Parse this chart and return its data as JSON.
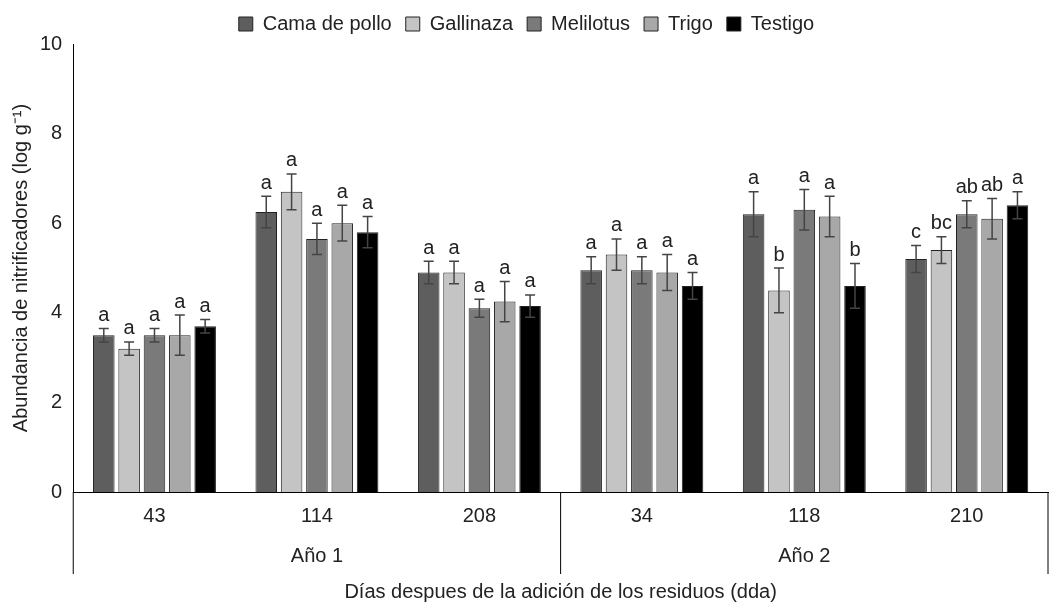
{
  "chart_data": {
    "type": "bar",
    "xlabel": "Días despues de la adición de los residuos (dda)",
    "ylabel": "Abundancia de nitrificadores (log g⁻¹)",
    "categories": [
      "43",
      "114",
      "208",
      "34",
      "118",
      "210"
    ],
    "annotations": [
      "Año 1",
      "Año 2"
    ],
    "ylim": [
      0,
      10
    ],
    "yticks": [
      0,
      2,
      4,
      6,
      8,
      10
    ],
    "grid": false,
    "legend": "top",
    "series": [
      {
        "name": "Cama de pollo",
        "color": "#5e5e5e",
        "values": [
          3.5,
          6.25,
          4.9,
          4.95,
          6.2,
          5.2
        ],
        "errors": [
          0.15,
          0.35,
          0.25,
          0.3,
          0.5,
          0.3
        ],
        "value_labels": [
          "a",
          "a",
          "a",
          "a",
          "a",
          "c"
        ]
      },
      {
        "name": "Gallinaza",
        "color": "#c4c4c4",
        "values": [
          3.2,
          6.7,
          4.9,
          5.3,
          4.5,
          5.4
        ],
        "errors": [
          0.15,
          0.4,
          0.25,
          0.35,
          0.5,
          0.3
        ],
        "value_labels": [
          "a",
          "a",
          "a",
          "a",
          "b",
          "bc"
        ]
      },
      {
        "name": "Melilotus",
        "color": "#7a7a7a",
        "values": [
          3.5,
          5.65,
          4.1,
          4.95,
          6.3,
          6.2
        ],
        "errors": [
          0.15,
          0.35,
          0.2,
          0.3,
          0.45,
          0.3
        ],
        "value_labels": [
          "a",
          "a",
          "a",
          "a",
          "a",
          "ab"
        ]
      },
      {
        "name": "Trigo",
        "color": "#a8a8a8",
        "values": [
          3.5,
          6.0,
          4.25,
          4.9,
          6.15,
          6.1
        ],
        "errors": [
          0.45,
          0.4,
          0.45,
          0.4,
          0.45,
          0.45
        ],
        "value_labels": [
          "a",
          "a",
          "a",
          "a",
          "a",
          "ab"
        ]
      },
      {
        "name": "Testigo",
        "color": "#000000",
        "values": [
          3.7,
          5.8,
          4.15,
          4.6,
          4.6,
          6.4
        ],
        "errors": [
          0.15,
          0.35,
          0.25,
          0.3,
          0.5,
          0.3
        ],
        "value_labels": [
          "a",
          "a",
          "a",
          "a",
          "b",
          "a"
        ]
      }
    ]
  }
}
